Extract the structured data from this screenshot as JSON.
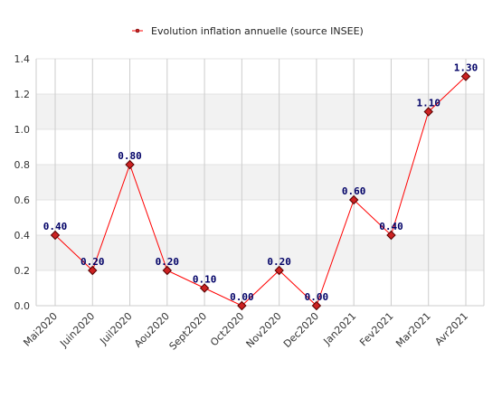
{
  "chart_data": {
    "type": "line",
    "categories": [
      "Mai2020",
      "Juin2020",
      "Juil2020",
      "Aou2020",
      "Sept2020",
      "Oct2020",
      "Nov2020",
      "Dec2020",
      "Jan2021",
      "Fev2021",
      "Mar2021",
      "Avr2021"
    ],
    "series": [
      {
        "name": "Evolution inflation annuelle (source INSEE)",
        "values": [
          0.4,
          0.2,
          0.8,
          0.2,
          0.1,
          0.0,
          0.2,
          0.0,
          0.6,
          0.4,
          1.1,
          1.3
        ],
        "labels": [
          "0.40",
          "0.20",
          "0.80",
          "0.20",
          "0.10",
          "0.00",
          "0.20",
          "0.00",
          "0.60",
          "0.40",
          "1.10",
          "1.30"
        ]
      }
    ],
    "ylim": [
      0,
      1.4
    ],
    "yticks": [
      "0.0",
      "0.2",
      "0.4",
      "0.6",
      "0.8",
      "1.0",
      "1.2",
      "1.4"
    ],
    "ytick_values": [
      0,
      0.2,
      0.4,
      0.6,
      0.8,
      1.0,
      1.2,
      1.4
    ],
    "grid": true,
    "legend_position": "top-center",
    "colors": {
      "line": "#ff0000",
      "marker_fill": "#cc2222",
      "marker_stroke": "#550000",
      "band": "#f2f2f2",
      "grid": "#cccccc",
      "data_label": "#000066"
    }
  }
}
